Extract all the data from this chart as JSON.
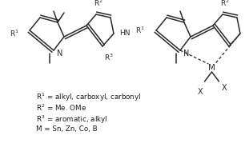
{
  "line_color": "#2a2a2a",
  "text_color": "#1a1a1a",
  "legend_lines": [
    "R$^1$ = alkyl, carboxyl, carbonyl",
    "R$^2$ = Me. OMe",
    "R$^3$ = aromatic, alkyl",
    "M = Sn, Zn, Co, B"
  ],
  "figsize": [
    3.06,
    1.89
  ],
  "dpi": 100
}
